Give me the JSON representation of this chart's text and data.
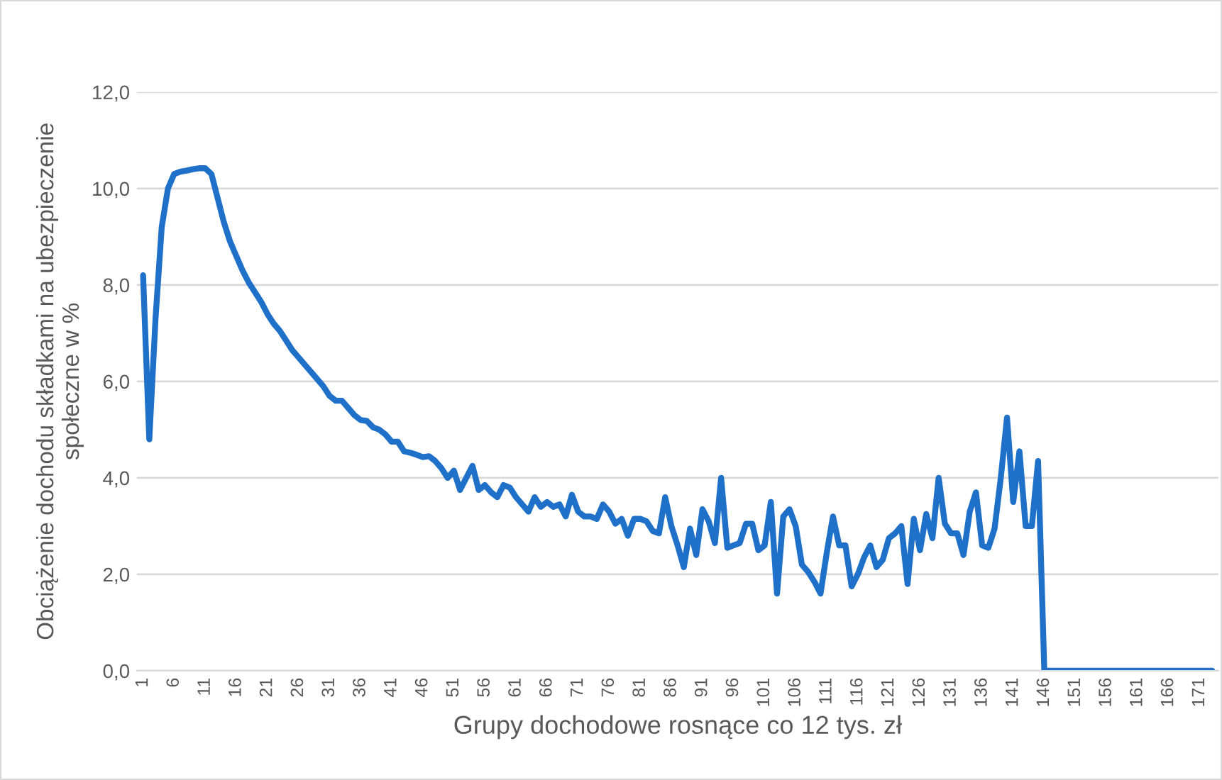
{
  "chart_data": {
    "type": "line",
    "xlabel": "Grupy dochodowe rosnące co 12 tys. zł",
    "ylabel": "Obciążenie dochodu składkami na ubezpieczenie\nspołeczne w %",
    "categories": [
      "1",
      null,
      null,
      null,
      null,
      "6",
      null,
      null,
      null,
      null,
      "11",
      null,
      null,
      null,
      null,
      "16",
      null,
      null,
      null,
      null,
      "21",
      null,
      null,
      null,
      null,
      "26",
      null,
      null,
      null,
      null,
      "31",
      null,
      null,
      null,
      null,
      "36",
      null,
      null,
      null,
      null,
      "41",
      null,
      null,
      null,
      null,
      "46",
      null,
      null,
      null,
      null,
      "51",
      null,
      null,
      null,
      null,
      "56",
      null,
      null,
      null,
      null,
      "61",
      null,
      null,
      null,
      null,
      "66",
      null,
      null,
      null,
      null,
      "71",
      null,
      null,
      null,
      null,
      "76",
      null,
      null,
      null,
      null,
      "81",
      null,
      null,
      null,
      null,
      "86",
      null,
      null,
      null,
      null,
      "91",
      null,
      null,
      null,
      null,
      "96",
      null,
      null,
      null,
      null,
      "101",
      null,
      null,
      null,
      null,
      "106",
      null,
      null,
      null,
      null,
      "111",
      null,
      null,
      null,
      null,
      "116",
      null,
      null,
      null,
      null,
      "121",
      null,
      null,
      null,
      null,
      "126",
      null,
      null,
      null,
      null,
      "131",
      null,
      null,
      null,
      null,
      "136",
      null,
      null,
      null,
      null,
      "141",
      null,
      null,
      null,
      null,
      "146",
      null,
      null,
      null,
      null,
      "151",
      null,
      null,
      null,
      null,
      "156",
      null,
      null,
      null,
      null,
      "161",
      null,
      null,
      null,
      null,
      "166",
      null,
      null,
      null,
      null,
      "171",
      null,
      null
    ],
    "series": [
      {
        "color": "#1f70c8",
        "values": [
          8.2,
          4.8,
          7.3,
          9.2,
          10.0,
          10.3,
          10.35,
          10.37,
          10.4,
          10.42,
          10.42,
          10.3,
          9.8,
          9.3,
          8.9,
          8.6,
          8.3,
          8.05,
          7.85,
          7.65,
          7.4,
          7.2,
          7.05,
          6.85,
          6.65,
          6.5,
          6.35,
          6.2,
          6.05,
          5.9,
          5.7,
          5.6,
          5.6,
          5.45,
          5.3,
          5.2,
          5.18,
          5.05,
          5.0,
          4.9,
          4.75,
          4.75,
          4.55,
          4.52,
          4.48,
          4.43,
          4.45,
          4.35,
          4.2,
          4.0,
          4.15,
          3.75,
          4.0,
          4.25,
          3.75,
          3.85,
          3.7,
          3.6,
          3.85,
          3.8,
          3.6,
          3.45,
          3.3,
          3.6,
          3.4,
          3.5,
          3.4,
          3.45,
          3.2,
          3.65,
          3.3,
          3.2,
          3.2,
          3.15,
          3.45,
          3.3,
          3.05,
          3.15,
          2.8,
          3.15,
          3.15,
          3.1,
          2.9,
          2.85,
          3.6,
          3.0,
          2.6,
          2.15,
          2.95,
          2.4,
          3.35,
          3.1,
          2.65,
          4.0,
          2.55,
          2.6,
          2.65,
          3.05,
          3.05,
          2.5,
          2.6,
          3.5,
          1.6,
          3.2,
          3.35,
          3.0,
          2.2,
          2.05,
          1.85,
          1.6,
          2.45,
          3.2,
          2.6,
          2.6,
          1.75,
          2.0,
          2.35,
          2.6,
          2.15,
          2.3,
          2.75,
          2.85,
          3.0,
          1.8,
          3.15,
          2.5,
          3.25,
          2.75,
          4.0,
          3.05,
          2.85,
          2.85,
          2.4,
          3.3,
          3.7,
          2.6,
          2.55,
          2.95,
          4.0,
          5.25,
          3.5,
          4.55,
          3.0,
          3.0,
          4.35,
          0,
          0,
          0,
          0,
          0,
          0,
          0,
          0,
          0,
          0,
          0,
          0,
          0,
          0,
          0,
          0,
          0,
          0,
          0,
          0,
          0,
          0,
          0,
          0,
          0,
          0,
          0,
          0
        ]
      }
    ],
    "ylim": [
      0,
      12
    ],
    "yticks": [
      {
        "value": 0,
        "label": "0,0"
      },
      {
        "value": 2,
        "label": "2,0"
      },
      {
        "value": 4,
        "label": "4,0"
      },
      {
        "value": 6,
        "label": "6,0"
      },
      {
        "value": 8,
        "label": "8,0"
      },
      {
        "value": 10,
        "label": "10,0"
      },
      {
        "value": 12,
        "label": "12,0"
      }
    ],
    "grid": "y",
    "marker": "none",
    "line_style": "solid"
  }
}
